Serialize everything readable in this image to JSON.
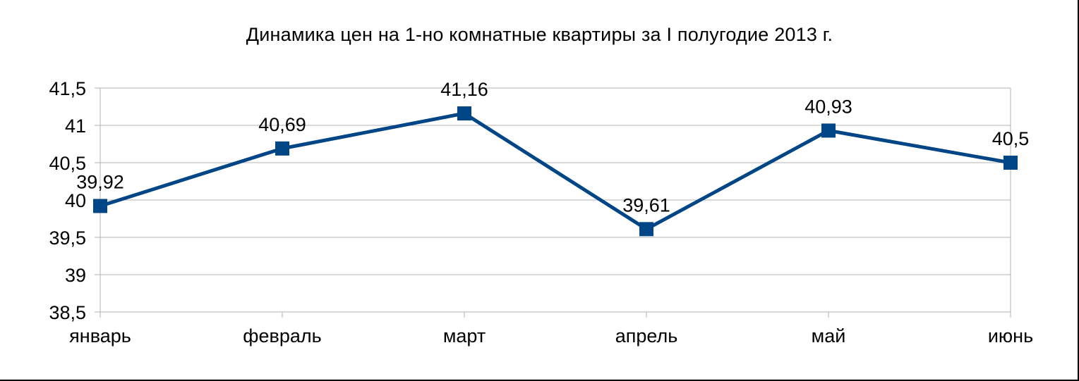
{
  "chart_data": {
    "type": "line",
    "title": "Динамика цен на 1-но комнатные квартиры за I полугодие 2013 г.",
    "categories": [
      "январь",
      "февраль",
      "март",
      "апрель",
      "май",
      "июнь"
    ],
    "series": [
      {
        "values": [
          39.92,
          40.69,
          41.16,
          39.61,
          40.93,
          40.5
        ],
        "labels": [
          "39,92",
          "40,69",
          "41,16",
          "39,61",
          "40,93",
          "40,5"
        ],
        "color": "#004586",
        "marker": "square"
      }
    ],
    "ylim": [
      38.5,
      41.5
    ],
    "yticks": [
      41.5,
      41,
      40.5,
      40,
      39.5,
      39,
      38.5
    ],
    "ytick_labels": [
      "41,5",
      "41",
      "40,5",
      "40",
      "39,5",
      "39",
      "38,5"
    ],
    "grid": true,
    "legend": "none"
  }
}
